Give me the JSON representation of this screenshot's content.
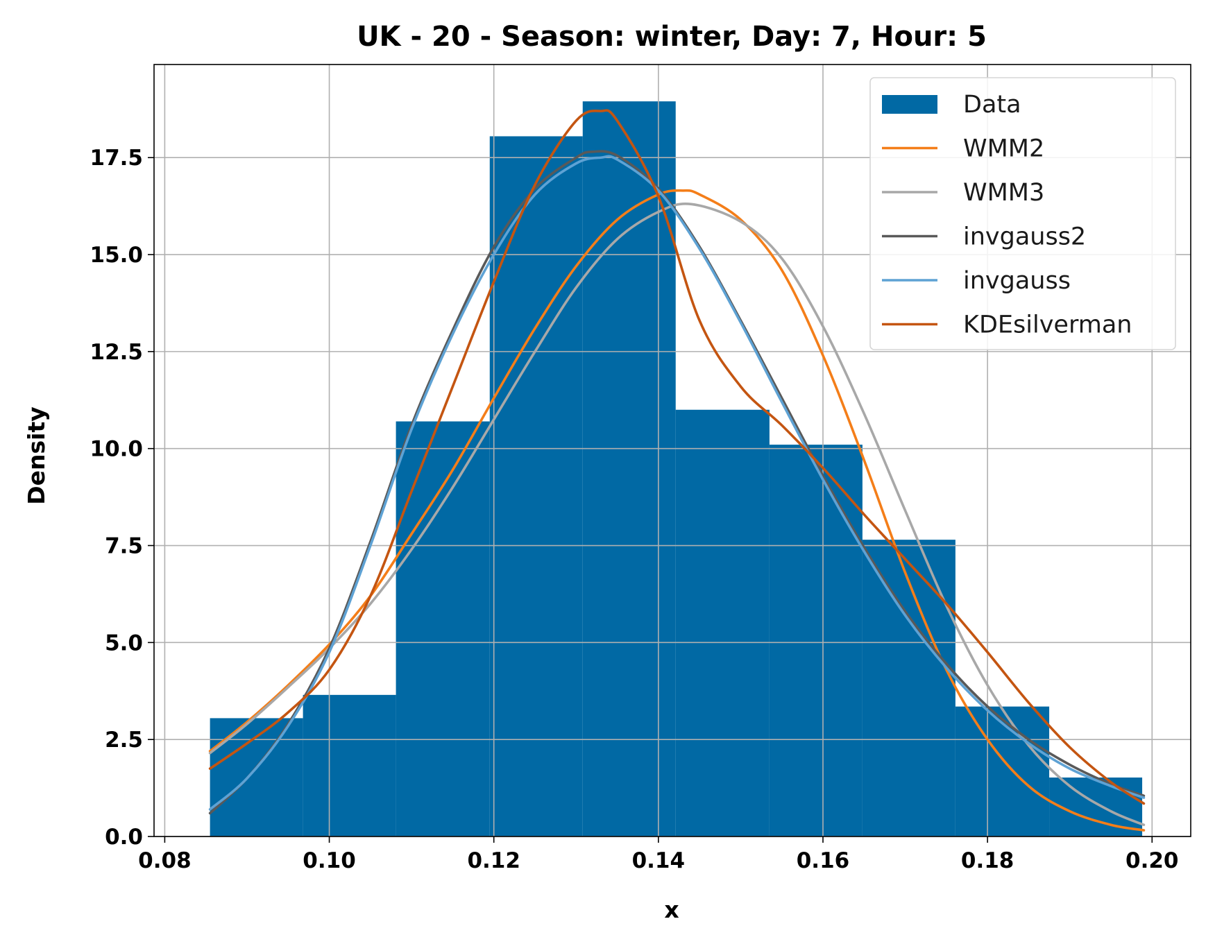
{
  "chart_data": {
    "type": "bar",
    "title": "UK - 20 - Season: winter, Day: 7, Hour: 5",
    "xlabel": "x",
    "ylabel": "Density",
    "xlim": [
      0.0787,
      0.2047
    ],
    "ylim": [
      0,
      19.9
    ],
    "grid": true,
    "legend_position": "top-right",
    "xticks": [
      {
        "value": 0.08,
        "label": "0.08"
      },
      {
        "value": 0.1,
        "label": "0.10"
      },
      {
        "value": 0.12,
        "label": "0.12"
      },
      {
        "value": 0.14,
        "label": "0.14"
      },
      {
        "value": 0.16,
        "label": "0.16"
      },
      {
        "value": 0.18,
        "label": "0.18"
      },
      {
        "value": 0.2,
        "label": "0.20"
      }
    ],
    "yticks": [
      {
        "value": 0.0,
        "label": "0.0"
      },
      {
        "value": 2.5,
        "label": "2.5"
      },
      {
        "value": 5.0,
        "label": "5.0"
      },
      {
        "value": 7.5,
        "label": "7.5"
      },
      {
        "value": 10.0,
        "label": "10.0"
      },
      {
        "value": 12.5,
        "label": "12.5"
      },
      {
        "value": 15.0,
        "label": "15.0"
      },
      {
        "value": 17.5,
        "label": "17.5"
      }
    ],
    "histogram": {
      "name": "Data",
      "color": "#0169a4",
      "bin_edges": [
        0.0855,
        0.0968,
        0.1081,
        0.1195,
        0.1308,
        0.1421,
        0.1535,
        0.1648,
        0.1761,
        0.1875,
        0.1988
      ],
      "values": [
        3.05,
        3.65,
        10.7,
        18.05,
        18.95,
        11.0,
        10.1,
        7.65,
        3.35,
        1.52
      ]
    },
    "series": [
      {
        "name": "WMM2",
        "color": "#f47e19",
        "x": [
          0.0855,
          0.09,
          0.095,
          0.1,
          0.105,
          0.11,
          0.115,
          0.12,
          0.125,
          0.13,
          0.135,
          0.14,
          0.143,
          0.145,
          0.15,
          0.155,
          0.16,
          0.165,
          0.17,
          0.175,
          0.18,
          0.185,
          0.19,
          0.195,
          0.199
        ],
        "y": [
          2.2,
          2.95,
          3.9,
          4.95,
          6.2,
          7.8,
          9.45,
          11.3,
          13.1,
          14.7,
          15.9,
          16.55,
          16.65,
          16.55,
          15.9,
          14.6,
          12.4,
          9.7,
          6.8,
          4.3,
          2.5,
          1.3,
          0.65,
          0.3,
          0.16
        ]
      },
      {
        "name": "WMM3",
        "color": "#a8a8a8",
        "x": [
          0.0855,
          0.09,
          0.095,
          0.1,
          0.105,
          0.11,
          0.115,
          0.12,
          0.125,
          0.13,
          0.135,
          0.14,
          0.144,
          0.15,
          0.155,
          0.16,
          0.165,
          0.17,
          0.175,
          0.18,
          0.185,
          0.19,
          0.195,
          0.199
        ],
        "y": [
          2.15,
          2.9,
          3.85,
          4.85,
          6.0,
          7.4,
          9.0,
          10.75,
          12.5,
          14.15,
          15.4,
          16.1,
          16.3,
          15.85,
          14.9,
          13.15,
          10.9,
          8.4,
          5.95,
          3.9,
          2.35,
          1.3,
          0.65,
          0.3
        ]
      },
      {
        "name": "invgauss2",
        "color": "#595959",
        "x": [
          0.0855,
          0.09,
          0.095,
          0.1,
          0.105,
          0.11,
          0.115,
          0.12,
          0.125,
          0.13,
          0.132,
          0.135,
          0.14,
          0.145,
          0.15,
          0.155,
          0.16,
          0.165,
          0.17,
          0.175,
          0.18,
          0.185,
          0.19,
          0.195,
          0.199
        ],
        "y": [
          0.6,
          1.5,
          2.9,
          4.85,
          7.6,
          10.6,
          13.05,
          15.2,
          16.7,
          17.5,
          17.65,
          17.55,
          16.7,
          15.2,
          13.3,
          11.3,
          9.3,
          7.45,
          5.8,
          4.45,
          3.35,
          2.5,
          1.85,
          1.35,
          1.05
        ]
      },
      {
        "name": "invgauss",
        "color": "#5ea2d4",
        "x": [
          0.0855,
          0.09,
          0.095,
          0.1,
          0.105,
          0.11,
          0.115,
          0.12,
          0.125,
          0.13,
          0.133,
          0.135,
          0.14,
          0.145,
          0.15,
          0.155,
          0.16,
          0.165,
          0.17,
          0.175,
          0.18,
          0.185,
          0.19,
          0.195,
          0.199
        ],
        "y": [
          0.7,
          1.5,
          2.85,
          4.75,
          7.5,
          10.5,
          12.95,
          15.0,
          16.55,
          17.35,
          17.5,
          17.45,
          16.65,
          15.15,
          13.25,
          11.2,
          9.2,
          7.35,
          5.7,
          4.35,
          3.25,
          2.4,
          1.75,
          1.3,
          1.0
        ]
      },
      {
        "name": "KDEsilverman",
        "color": "#c45511",
        "x": [
          0.0855,
          0.09,
          0.095,
          0.1,
          0.105,
          0.11,
          0.115,
          0.12,
          0.125,
          0.13,
          0.133,
          0.135,
          0.14,
          0.145,
          0.15,
          0.155,
          0.16,
          0.165,
          0.17,
          0.175,
          0.18,
          0.185,
          0.19,
          0.195,
          0.199
        ],
        "y": [
          1.75,
          2.4,
          3.2,
          4.3,
          6.2,
          8.9,
          11.6,
          14.3,
          16.8,
          18.45,
          18.7,
          18.45,
          16.5,
          13.3,
          11.6,
          10.6,
          9.5,
          8.3,
          7.15,
          6.0,
          4.75,
          3.45,
          2.3,
          1.4,
          0.85
        ]
      }
    ],
    "legend": [
      {
        "label": "Data",
        "kind": "patch",
        "color": "#0169a4"
      },
      {
        "label": "WMM2",
        "kind": "line",
        "color": "#f47e19"
      },
      {
        "label": "WMM3",
        "kind": "line",
        "color": "#a8a8a8"
      },
      {
        "label": "invgauss2",
        "kind": "line",
        "color": "#595959"
      },
      {
        "label": "invgauss",
        "kind": "line",
        "color": "#5ea2d4"
      },
      {
        "label": "KDEsilverman",
        "kind": "line",
        "color": "#c45511"
      }
    ]
  }
}
